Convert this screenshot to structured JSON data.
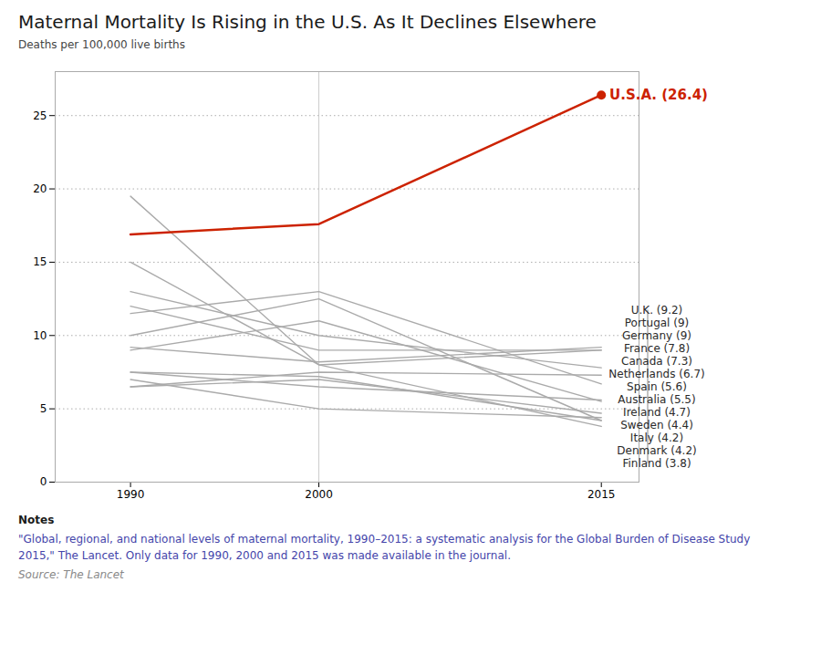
{
  "chart_data": {
    "type": "line",
    "title": "Maternal Mortality Is Rising in the U.S. As It Declines Elsewhere",
    "y_label": "Deaths per 100,000 live births",
    "x": [
      1990,
      2000,
      2015
    ],
    "series": [
      {
        "name": "U.K.",
        "color": "#aaaaaa",
        "values": [
          9.2,
          8.2,
          9.2
        ]
      },
      {
        "name": "Portugal",
        "color": "#aaaaaa",
        "values": [
          15.0,
          8.0,
          9.0
        ]
      },
      {
        "name": "Germany",
        "color": "#aaaaaa",
        "values": [
          12.0,
          9.0,
          9.0
        ]
      },
      {
        "name": "France",
        "color": "#aaaaaa",
        "values": [
          13.0,
          10.0,
          7.8
        ]
      },
      {
        "name": "Canada",
        "color": "#aaaaaa",
        "values": [
          6.5,
          7.5,
          7.3
        ]
      },
      {
        "name": "Netherlands",
        "color": "#aaaaaa",
        "values": [
          11.5,
          13.0,
          6.7
        ]
      },
      {
        "name": "Spain",
        "color": "#aaaaaa",
        "values": [
          7.5,
          6.5,
          5.6
        ]
      },
      {
        "name": "Australia",
        "color": "#aaaaaa",
        "values": [
          9.0,
          11.0,
          5.5
        ]
      },
      {
        "name": "Ireland",
        "color": "#aaaaaa",
        "values": [
          6.5,
          7.0,
          4.7
        ]
      },
      {
        "name": "Sweden",
        "color": "#aaaaaa",
        "values": [
          7.0,
          5.0,
          4.4
        ]
      },
      {
        "name": "Italy",
        "color": "#aaaaaa",
        "values": [
          7.5,
          7.2,
          4.2
        ]
      },
      {
        "name": "Denmark",
        "color": "#aaaaaa",
        "values": [
          10.0,
          12.5,
          4.2
        ]
      },
      {
        "name": "Finland",
        "color": "#aaaaaa",
        "values": [
          19.5,
          8.0,
          3.8
        ]
      },
      {
        "name": "U.S.A.",
        "color": "#cc2200",
        "values": [
          16.9,
          17.6,
          26.4
        ],
        "marker": "o"
      }
    ],
    "xlim": [
      1986,
      2017
    ],
    "xticks": [
      1990,
      2000,
      2015
    ],
    "ylim": [
      0,
      28
    ],
    "yticks": [
      0,
      5,
      10,
      15,
      20,
      25
    ],
    "grid": true,
    "reference_lines": [
      {
        "x": 2000,
        "color": "#cccccc"
      }
    ],
    "annotations": [
      {
        "text": "U.S.A. (26.4)",
        "y": 26.4,
        "color": "#cc2200"
      },
      {
        "text": "U.K. (9.2)",
        "y": 9.2
      },
      {
        "text": "Portugal (9)",
        "y": 9
      },
      {
        "text": "Germany (9)",
        "y": 9
      },
      {
        "text": "France (7.8)",
        "y": 7.8
      },
      {
        "text": "Canada (7.3)",
        "y": 7.3
      },
      {
        "text": "Netherlands (6.7)",
        "y": 6.7
      },
      {
        "text": "Spain (5.6)",
        "y": 5.6
      },
      {
        "text": "Australia (5.5)",
        "y": 5.5
      },
      {
        "text": "Ireland (4.7)",
        "y": 4.7
      },
      {
        "text": "Sweden (4.4)",
        "y": 4.4
      },
      {
        "text": "Italy (4.2)",
        "y": 4.2
      },
      {
        "text": "Denmark (4.2)",
        "y": 4.2
      },
      {
        "text": "Finland (3.8)",
        "y": 3.8
      }
    ],
    "notes": [
      {
        "text": "Notes"
      },
      {
        "text": "\"Global, regional, and national levels of maternal mortality, 1990–2015: a systematic analysis for the Global Burden of Disease Study\n2015,\" The Lancet. Only data for 1990, 2000 and 2015 was made available in the journal.",
        "color": "#4444aa"
      },
      {
        "text": "Source: The Lancet",
        "color": "#888888"
      }
    ]
  }
}
